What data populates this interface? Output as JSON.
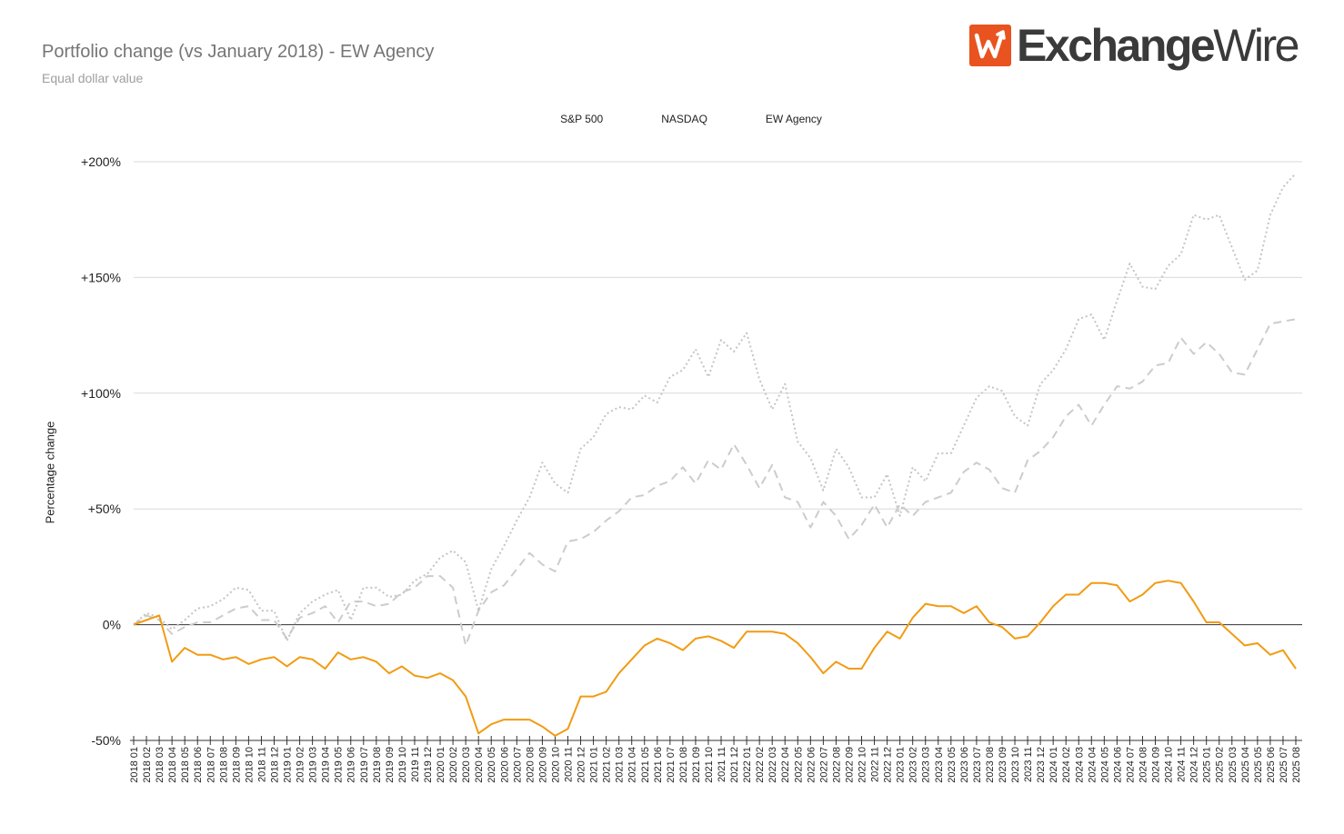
{
  "header": {
    "title": "Portfolio change (vs January 2018) - EW Agency",
    "subtitle": "Equal dollar value"
  },
  "logo": {
    "mark_icon": "exchangewire-w-icon",
    "text_bold": "Exchange",
    "text_light": "Wire"
  },
  "colors": {
    "sp500": "#cccccc",
    "nasdaq": "#c4c4c4",
    "ew": "#f29b12",
    "grid": "#d9d9d9",
    "zero": "#333333"
  },
  "chart_data": {
    "type": "line",
    "title": "Portfolio change (vs January 2018) - EW Agency",
    "subtitle": "Equal dollar value",
    "xlabel": "",
    "ylabel": "Percentage change",
    "ylim": [
      -50,
      200
    ],
    "yticks": [
      -50,
      0,
      50,
      100,
      150,
      200
    ],
    "ytick_labels": [
      "-50%",
      "0%",
      "+50%",
      "+100%",
      "+150%",
      "+200%"
    ],
    "grid": true,
    "legend_position": "top-center",
    "x": [
      "2018 01",
      "2018 02",
      "2018 03",
      "2018 04",
      "2018 05",
      "2018 06",
      "2018 07",
      "2018 08",
      "2018 09",
      "2018 10",
      "2018 11",
      "2018 12",
      "2019 01",
      "2019 02",
      "2019 03",
      "2019 04",
      "2019 05",
      "2019 06",
      "2019 07",
      "2019 08",
      "2019 09",
      "2019 10",
      "2019 11",
      "2019 12",
      "2020 01",
      "2020 02",
      "2020 03",
      "2020 04",
      "2020 05",
      "2020 06",
      "2020 07",
      "2020 08",
      "2020 09",
      "2020 10",
      "2020 11",
      "2020 12",
      "2021 01",
      "2021 02",
      "2021 03",
      "2021 04",
      "2021 05",
      "2021 06",
      "2021 07",
      "2021 08",
      "2021 09",
      "2021 10",
      "2021 11",
      "2021 12",
      "2022 01",
      "2022 02",
      "2022 03",
      "2022 04",
      "2022 05",
      "2022 06",
      "2022 07",
      "2022 08",
      "2022 09",
      "2022 10",
      "2022 11",
      "2022 12",
      "2023 01",
      "2023 02",
      "2023 03",
      "2023 04",
      "2023 05",
      "2023 06",
      "2023 07",
      "2023 08",
      "2023 09",
      "2023 10",
      "2023 11",
      "2023 12",
      "2024 01",
      "2024 02",
      "2024 03",
      "2024 04",
      "2024 05",
      "2024 06",
      "2024 07",
      "2024 08",
      "2024 09",
      "2024 10",
      "2024 11",
      "2024 12",
      "2025 01",
      "2025 02",
      "2025 03",
      "2025 04",
      "2025 05",
      "2025 06",
      "2025 07",
      "2025 08"
    ],
    "series": [
      {
        "name": "S&P 500",
        "style": "dashed",
        "values": [
          0,
          4,
          2,
          -4,
          -1,
          1,
          1,
          4,
          7,
          8,
          2,
          2,
          -6,
          3,
          5,
          8,
          1,
          10,
          10,
          8,
          9,
          14,
          16,
          21,
          21,
          16,
          -9,
          6,
          14,
          17,
          24,
          31,
          26,
          23,
          36,
          37,
          40,
          45,
          49,
          55,
          56,
          60,
          62,
          68,
          61,
          71,
          67,
          78,
          69,
          59,
          69,
          55,
          53,
          42,
          53,
          47,
          37,
          43,
          52,
          42,
          52,
          47,
          53,
          55,
          57,
          66,
          70,
          67,
          59,
          57,
          71,
          75,
          81,
          90,
          95,
          86,
          95,
          103,
          102,
          105,
          112,
          113,
          124,
          117,
          122,
          117,
          109,
          108,
          119,
          130,
          131,
          132
        ]
      },
      {
        "name": "NASDAQ",
        "style": "dotted",
        "values": [
          0,
          5,
          3,
          -2,
          2,
          7,
          8,
          11,
          16,
          15,
          6,
          6,
          -7,
          5,
          10,
          13,
          15,
          2,
          16,
          16,
          12,
          13,
          19,
          22,
          29,
          32,
          27,
          6,
          24,
          34,
          45,
          55,
          70,
          61,
          57,
          76,
          81,
          91,
          94,
          93,
          99,
          96,
          107,
          110,
          119,
          107,
          123,
          118,
          126,
          106,
          93,
          104,
          79,
          72,
          58,
          76,
          68,
          55,
          55,
          65,
          47,
          68,
          62,
          74,
          74,
          86,
          98,
          103,
          101,
          90,
          86,
          104,
          110,
          119,
          132,
          134,
          123,
          140,
          156,
          146,
          145,
          155,
          160,
          177,
          175,
          177,
          163,
          149,
          153,
          177,
          189,
          195
        ]
      },
      {
        "name": "EW Agency",
        "style": "solid",
        "values": [
          0,
          2,
          4,
          -16,
          -10,
          -13,
          -13,
          -15,
          -14,
          -17,
          -15,
          -14,
          -18,
          -14,
          -15,
          -19,
          -12,
          -15,
          -14,
          -16,
          -21,
          -18,
          -22,
          -23,
          -21,
          -24,
          -31,
          -47,
          -43,
          -41,
          -41,
          -41,
          -44,
          -48,
          -45,
          -31,
          -31,
          -29,
          -21,
          -15,
          -9,
          -6,
          -8,
          -11,
          -6,
          -5,
          -7,
          -10,
          -3,
          -3,
          -3,
          -4,
          -8,
          -14,
          -21,
          -16,
          -19,
          -19,
          -10,
          -3,
          -6,
          3,
          9,
          8,
          8,
          5,
          8,
          1,
          -1,
          -6,
          -5,
          1,
          8,
          13,
          13,
          18,
          18,
          17,
          10,
          13,
          18,
          19,
          18,
          10,
          1,
          1,
          -4,
          -9,
          -8,
          -13,
          -11,
          -19
        ]
      }
    ]
  }
}
